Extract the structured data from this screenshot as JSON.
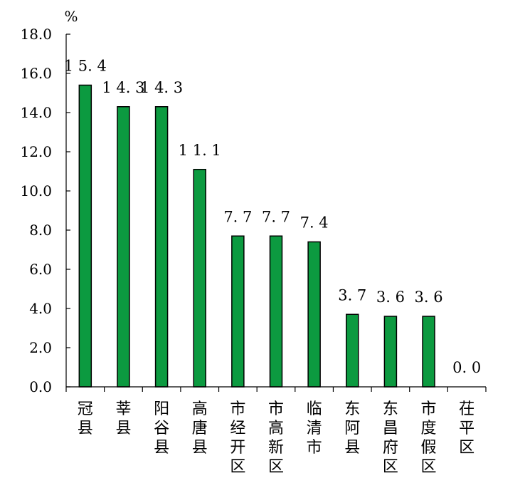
{
  "chart_data": {
    "type": "bar",
    "unit": "%",
    "categories": [
      "冠县",
      "莘县",
      "阳谷县",
      "高唐县",
      "市经开区",
      "市高新区",
      "临清市",
      "东阿县",
      "东昌府区",
      "市度假区",
      "茌平区"
    ],
    "values": [
      15.4,
      14.3,
      14.3,
      11.1,
      7.7,
      7.7,
      7.4,
      3.7,
      3.6,
      3.6,
      0.0
    ],
    "data_labels": [
      "15.4",
      "14.3",
      "14.3",
      "11.1",
      "7.7",
      "7.7",
      "7.4",
      "3.7",
      "3.6",
      "3.6",
      "0.0"
    ],
    "y_ticks": [
      "0.0",
      "2.0",
      "4.0",
      "6.0",
      "8.0",
      "10.0",
      "12.0",
      "14.0",
      "16.0",
      "18.0"
    ],
    "ylim": [
      0,
      18
    ],
    "bar_color": "#0c9a40",
    "grid": false,
    "legend": "none"
  }
}
